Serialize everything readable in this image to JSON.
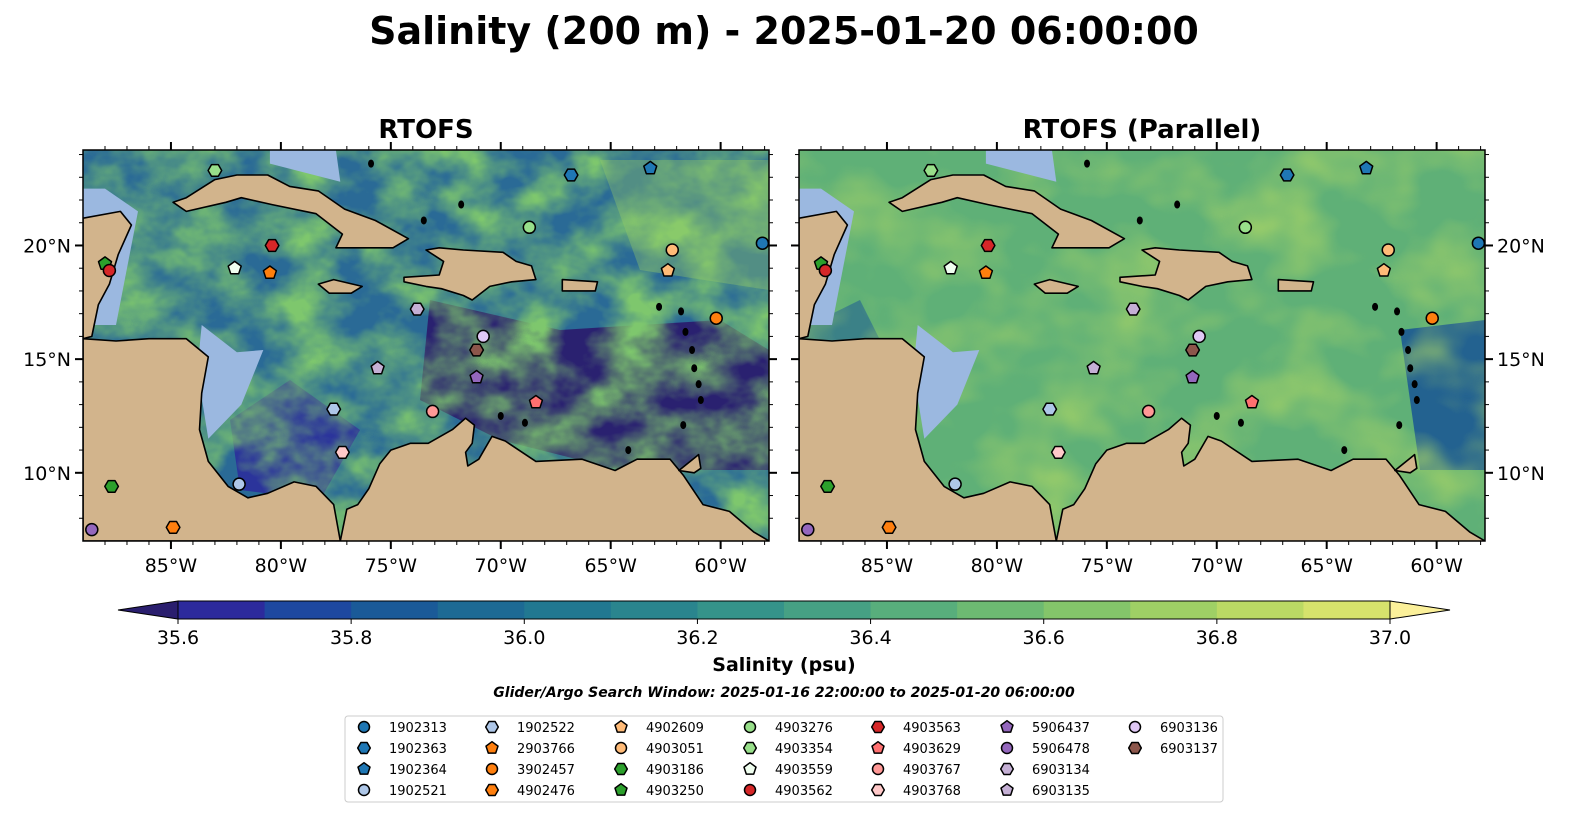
{
  "title": "Salinity (200 m) - 2025-01-20 06:00:00",
  "panels": [
    {
      "title": "RTOFS",
      "variant": "a"
    },
    {
      "title": "RTOFS (Parallel)",
      "variant": "b"
    }
  ],
  "axes": {
    "lon_range": [
      -89,
      -57.8
    ],
    "lat_range": [
      7,
      24.2
    ],
    "xticks": [
      {
        "value": -85,
        "label": "85°W"
      },
      {
        "value": -80,
        "label": "80°W"
      },
      {
        "value": -75,
        "label": "75°W"
      },
      {
        "value": -70,
        "label": "70°W"
      },
      {
        "value": -65,
        "label": "65°W"
      },
      {
        "value": -60,
        "label": "60°W"
      }
    ],
    "yticks": [
      {
        "value": 10,
        "label": "10°N"
      },
      {
        "value": 15,
        "label": "15°N"
      },
      {
        "value": 20,
        "label": "20°N"
      }
    ]
  },
  "colorbar": {
    "label": "Salinity (psu)",
    "range": [
      35.5,
      37.0
    ],
    "extend": "both",
    "ticks": [
      "35.6",
      "35.8",
      "36.0",
      "36.2",
      "36.4",
      "36.6",
      "36.8",
      "37.0"
    ],
    "tick_values": [
      35.6,
      35.8,
      36.0,
      36.2,
      36.4,
      36.6,
      36.8,
      37.0
    ],
    "colors": [
      "#2a1e6e",
      "#2c2a9c",
      "#1e48a0",
      "#1a5a98",
      "#1d6a94",
      "#217891",
      "#2a858e",
      "#35938a",
      "#46a184",
      "#58ae7c",
      "#6dba72",
      "#84c56a",
      "#9fd065",
      "#bbd964",
      "#d6e26c",
      "#fbf09a"
    ]
  },
  "search_window": "Glider/Argo Search Window: 2025-01-16 22:00:00 to 2025-01-20 06:00:00",
  "legend": [
    {
      "id": "1902313",
      "marker": "circle",
      "color": "#1f77b4",
      "lon": -58.1,
      "lat": 20.1
    },
    {
      "id": "1902363",
      "marker": "hexagon",
      "color": "#1f77b4",
      "lon": -66.8,
      "lat": 23.1
    },
    {
      "id": "1902364",
      "marker": "pentagon",
      "color": "#1f77b4",
      "lon": -63.2,
      "lat": 23.4
    },
    {
      "id": "1902521",
      "marker": "circle",
      "color": "#aec7e8",
      "lon": -81.9,
      "lat": 9.5
    },
    {
      "id": "1902522",
      "marker": "hexagon",
      "color": "#aec7e8",
      "lon": -77.6,
      "lat": 12.8
    },
    {
      "id": "2903766",
      "marker": "pentagon",
      "color": "#ff7f0e",
      "lon": -80.5,
      "lat": 18.8
    },
    {
      "id": "3902457",
      "marker": "circle",
      "color": "#ff7f0e",
      "lon": -60.2,
      "lat": 16.8
    },
    {
      "id": "4902476",
      "marker": "hexagon",
      "color": "#ff7f0e",
      "lon": -84.9,
      "lat": 7.6
    },
    {
      "id": "4902609",
      "marker": "pentagon",
      "color": "#ffbb78",
      "lon": -62.4,
      "lat": 18.9
    },
    {
      "id": "4903051",
      "marker": "circle",
      "color": "#ffbb78",
      "lon": -62.2,
      "lat": 19.8
    },
    {
      "id": "4903186",
      "marker": "hexagon",
      "color": "#2ca02c",
      "lon": -87.7,
      "lat": 9.4
    },
    {
      "id": "4903250",
      "marker": "pentagon",
      "color": "#2ca02c",
      "lon": -88,
      "lat": 19.2
    },
    {
      "id": "4903276",
      "marker": "circle",
      "color": "#98df8a",
      "lon": -68.7,
      "lat": 20.8
    },
    {
      "id": "4903354",
      "marker": "hexagon",
      "color": "#98df8a",
      "lon": -83,
      "lat": 23.3
    },
    {
      "id": "4903559",
      "marker": "pentagon",
      "color": "#f0fff0",
      "lon": -82.1,
      "lat": 19
    },
    {
      "id": "4903562",
      "marker": "circle",
      "color": "#d62728",
      "lon": -87.8,
      "lat": 18.9
    },
    {
      "id": "4903563",
      "marker": "hexagon",
      "color": "#d62728",
      "lon": -80.4,
      "lat": 20
    },
    {
      "id": "4903629",
      "marker": "pentagon",
      "color": "#ff7070",
      "lon": -68.4,
      "lat": 13.1
    },
    {
      "id": "4903767",
      "marker": "circle",
      "color": "#ff9896",
      "lon": -73.1,
      "lat": 12.7
    },
    {
      "id": "4903768",
      "marker": "hexagon",
      "color": "#ffc9c9",
      "lon": -77.2,
      "lat": 10.9
    },
    {
      "id": "5906437",
      "marker": "pentagon",
      "color": "#9467bd",
      "lon": -71.1,
      "lat": 14.2
    },
    {
      "id": "5906478",
      "marker": "circle",
      "color": "#9467bd",
      "lon": -88.6,
      "lat": 7.5
    },
    {
      "id": "6903134",
      "marker": "hexagon",
      "color": "#c5b0d5",
      "lon": -73.8,
      "lat": 17.2
    },
    {
      "id": "6903135",
      "marker": "pentagon",
      "color": "#c5b0d5",
      "lon": -75.6,
      "lat": 14.6
    },
    {
      "id": "6903136",
      "marker": "circle",
      "color": "#e0c8f5",
      "lon": -70.8,
      "lat": 16
    },
    {
      "id": "6903137",
      "marker": "hexagon",
      "color": "#8c564b",
      "lon": -71.1,
      "lat": 15.4
    }
  ]
}
